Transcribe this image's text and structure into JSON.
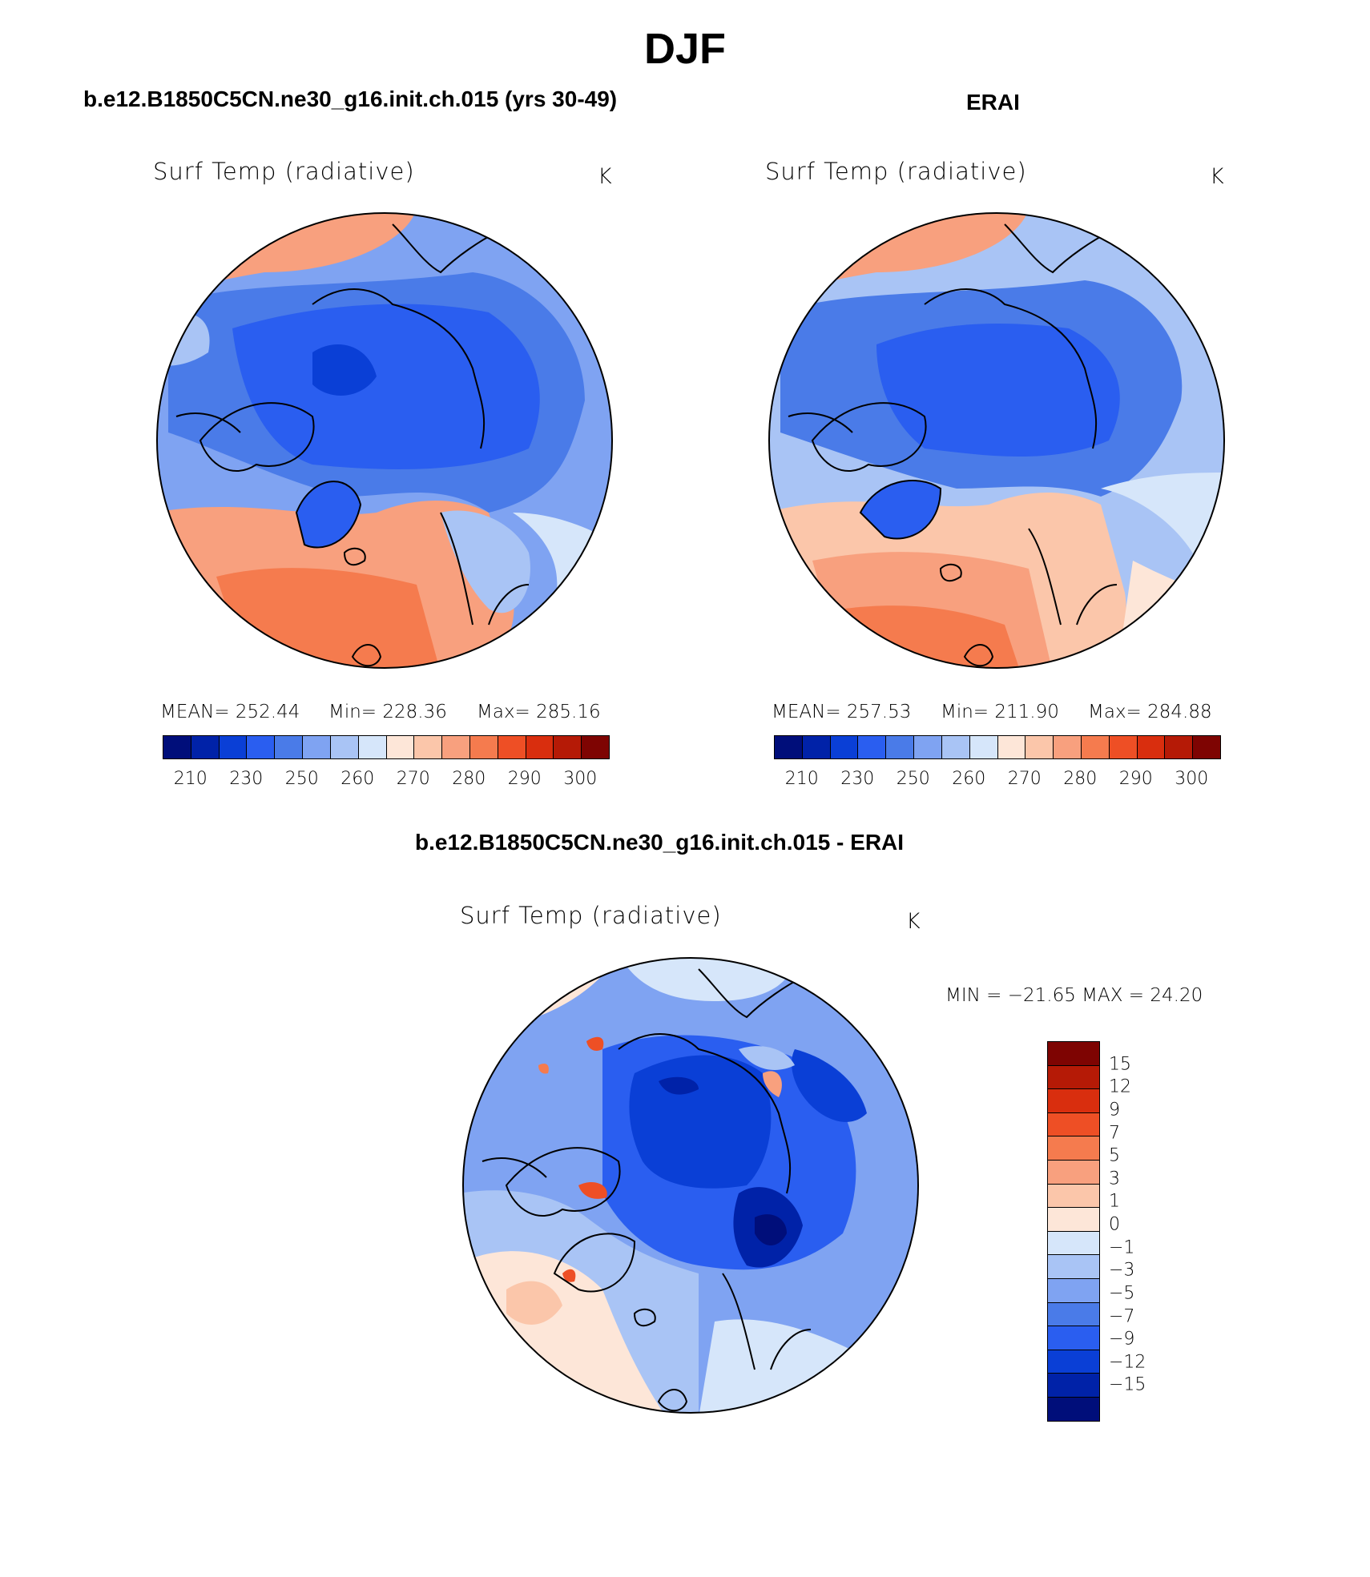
{
  "figure": {
    "season": "DJF",
    "model_title": "b.e12.B1850C5CN.ne30_g16.init.ch.015 (yrs 30-49)",
    "obs_title": "ERAI",
    "diff_title": "b.e12.B1850C5CN.ne30_g16.init.ch.015 - ERAI"
  },
  "panels": {
    "model": {
      "variable": "Surf Temp (radiative)",
      "units": "K",
      "mean_label": "MEAN= 252.44",
      "min_label": "Min= 228.36",
      "max_label": "Max= 285.16"
    },
    "obs": {
      "variable": "Surf Temp (radiative)",
      "units": "K",
      "mean_label": "MEAN= 257.53",
      "min_label": "Min= 211.90",
      "max_label": "Max= 284.88"
    },
    "diff": {
      "variable": "Surf Temp (radiative)",
      "units": "K",
      "minmax_label": "MIN = −21.65 MAX =   24.20"
    }
  },
  "colorbars": {
    "absolute": {
      "labels": [
        "210",
        "230",
        "250",
        "260",
        "270",
        "280",
        "290",
        "300"
      ],
      "colors": [
        "#000e7a",
        "#0022a8",
        "#0a3fd6",
        "#2a5ef0",
        "#4a7be8",
        "#7fa3f2",
        "#a9c4f5",
        "#d6e6fa",
        "#fde6d8",
        "#fbc6aa",
        "#f8a07e",
        "#f57b4e",
        "#ee4f25",
        "#d92e0e",
        "#b51a06",
        "#7e0402"
      ]
    },
    "difference": {
      "labels": [
        "15",
        "12",
        "9",
        "7",
        "5",
        "3",
        "1",
        "0",
        "−1",
        "−3",
        "−5",
        "−7",
        "−9",
        "−12",
        "−15"
      ],
      "colors": [
        "#7e0402",
        "#b51a06",
        "#d92e0e",
        "#ee4f25",
        "#f57b4e",
        "#f8a07e",
        "#fbc6aa",
        "#fde6d8",
        "#d6e6fa",
        "#a9c4f5",
        "#7fa3f2",
        "#4a7be8",
        "#2a5ef0",
        "#0a3fd6",
        "#0022a8",
        "#000e7a"
      ]
    }
  }
}
